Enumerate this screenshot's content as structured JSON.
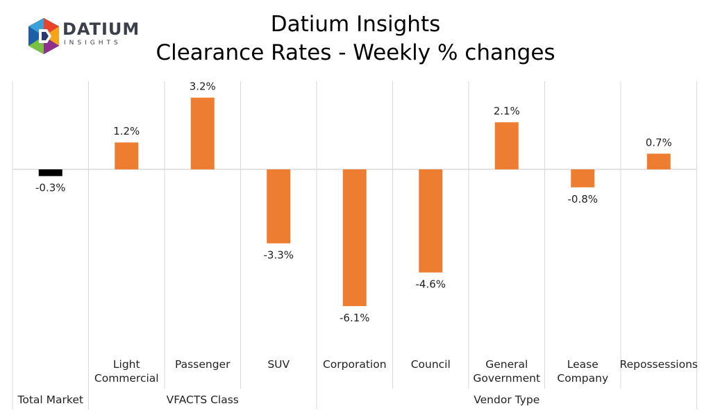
{
  "brand": {
    "name": "DATIUM",
    "tagline": "INSIGHTS"
  },
  "colors": {
    "positive_bar": "#ED7D31",
    "total_bar": "#000000",
    "grid": "#d9d9d9"
  },
  "chart_data": {
    "type": "bar",
    "title": "Datium Insights",
    "subtitle": "Clearance Rates - Weekly % changes",
    "categories": [
      [
        "Total Market"
      ],
      [
        "Light",
        "Commercial"
      ],
      [
        "Passenger"
      ],
      [
        "SUV"
      ],
      [
        "Corporation"
      ],
      [
        "Council"
      ],
      [
        "General",
        "Government"
      ],
      [
        "Lease",
        "Company"
      ],
      [
        "Repossessions"
      ]
    ],
    "values": [
      -0.3,
      1.2,
      3.2,
      -3.3,
      -6.1,
      -4.6,
      2.1,
      -0.8,
      0.7
    ],
    "data_labels": [
      "-0.3%",
      "1.2%",
      "3.2%",
      "-3.3%",
      "-6.1%",
      "-4.6%",
      "2.1%",
      "-0.8%",
      "0.7%"
    ],
    "groups": [
      {
        "label": "Total Market",
        "start": 0,
        "end": 0
      },
      {
        "label": "VFACTS Class",
        "start": 1,
        "end": 3
      },
      {
        "label": "Vendor Type",
        "start": 4,
        "end": 8
      }
    ],
    "ylim": [
      -8,
      4
    ],
    "xlabel": "",
    "ylabel": ""
  }
}
